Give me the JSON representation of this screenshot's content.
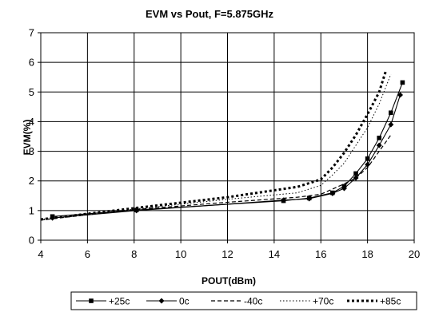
{
  "chart_data": {
    "type": "line",
    "title": "EVM vs Pout, F=5.875GHz",
    "xlabel": "POUT(dBm)",
    "ylabel": "EVM(%)",
    "xlim": [
      4,
      20
    ],
    "ylim": [
      0,
      7
    ],
    "x_ticks": [
      4,
      6,
      8,
      10,
      12,
      14,
      16,
      18,
      20
    ],
    "y_ticks": [
      0,
      1,
      2,
      3,
      4,
      5,
      6,
      7
    ],
    "grid": true,
    "legend_position": "bottom",
    "series": [
      {
        "name": "+25c",
        "style": "solid",
        "marker": "square",
        "color": "#000000",
        "points": [
          [
            4.5,
            0.8
          ],
          [
            8.1,
            1.02
          ],
          [
            14.4,
            1.33
          ],
          [
            15.5,
            1.42
          ],
          [
            16.5,
            1.6
          ],
          [
            17.0,
            1.82
          ],
          [
            17.5,
            2.25
          ],
          [
            18.0,
            2.75
          ],
          [
            18.5,
            3.45
          ],
          [
            19.0,
            4.3
          ],
          [
            19.5,
            5.32
          ]
        ]
      },
      {
        "name": "0c",
        "style": "solid",
        "marker": "diamond",
        "color": "#000000",
        "points": [
          [
            4.5,
            0.75
          ],
          [
            8.1,
            1.0
          ],
          [
            14.4,
            1.35
          ],
          [
            15.5,
            1.4
          ],
          [
            16.5,
            1.58
          ],
          [
            17.0,
            1.75
          ],
          [
            17.5,
            2.1
          ],
          [
            18.0,
            2.55
          ],
          [
            18.5,
            3.2
          ],
          [
            19.0,
            3.9
          ],
          [
            19.4,
            4.9
          ]
        ]
      },
      {
        "name": "-40c",
        "style": "dashed",
        "marker": "none",
        "color": "#000000",
        "points": [
          [
            4.0,
            0.68
          ],
          [
            8.0,
            1.03
          ],
          [
            12.0,
            1.28
          ],
          [
            15.0,
            1.45
          ],
          [
            16.0,
            1.55
          ],
          [
            17.0,
            1.9
          ],
          [
            17.5,
            2.1
          ],
          [
            18.0,
            2.45
          ],
          [
            18.5,
            3.0
          ],
          [
            19.0,
            3.55
          ]
        ]
      },
      {
        "name": "+70c",
        "style": "dotted",
        "marker": "none",
        "color": "#000000",
        "points": [
          [
            4.0,
            0.7
          ],
          [
            8.0,
            1.05
          ],
          [
            12.0,
            1.38
          ],
          [
            15.0,
            1.6
          ],
          [
            16.0,
            1.85
          ],
          [
            16.5,
            2.2
          ],
          [
            17.0,
            2.6
          ],
          [
            17.5,
            3.2
          ],
          [
            18.0,
            3.8
          ],
          [
            18.5,
            4.6
          ],
          [
            19.0,
            5.6
          ]
        ]
      },
      {
        "name": "+85c",
        "style": "bold-dotted",
        "marker": "none",
        "color": "#000000",
        "points": [
          [
            4.0,
            0.7
          ],
          [
            8.0,
            1.08
          ],
          [
            12.0,
            1.45
          ],
          [
            15.0,
            1.8
          ],
          [
            16.0,
            2.05
          ],
          [
            16.5,
            2.45
          ],
          [
            17.0,
            2.95
          ],
          [
            17.5,
            3.55
          ],
          [
            18.0,
            4.25
          ],
          [
            18.5,
            5.0
          ],
          [
            18.8,
            5.75
          ]
        ]
      }
    ]
  }
}
